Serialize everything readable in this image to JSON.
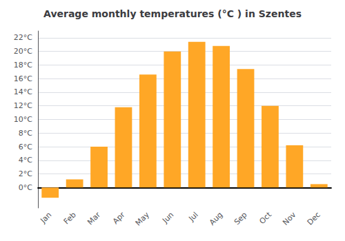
{
  "chart_data": {
    "type": "bar",
    "title": "Average monthly temperatures (°C ) in Szentes",
    "categories": [
      "Jan",
      "Feb",
      "Mar",
      "Apr",
      "May",
      "Jun",
      "Jul",
      "Aug",
      "Sep",
      "Oct",
      "Nov",
      "Dec"
    ],
    "values": [
      -1.5,
      1.2,
      6.0,
      11.8,
      16.6,
      20.0,
      21.4,
      20.8,
      17.4,
      12.0,
      6.2,
      0.5
    ],
    "color": "#FFA726",
    "ylim": [
      -3,
      23
    ],
    "yticks": [
      {
        "value": 0,
        "label": "0°C"
      },
      {
        "value": 2,
        "label": "2°C"
      },
      {
        "value": 4,
        "label": "4°C"
      },
      {
        "value": 6,
        "label": "6°C"
      },
      {
        "value": 8,
        "label": "8°C"
      },
      {
        "value": 10,
        "label": "10°C"
      },
      {
        "value": 12,
        "label": "12°C"
      },
      {
        "value": 14,
        "label": "14°C"
      },
      {
        "value": 16,
        "label": "16°C"
      },
      {
        "value": 18,
        "label": "18°C"
      },
      {
        "value": 20,
        "label": "20°C"
      },
      {
        "value": 22,
        "label": "22°C"
      }
    ],
    "grid": true
  }
}
